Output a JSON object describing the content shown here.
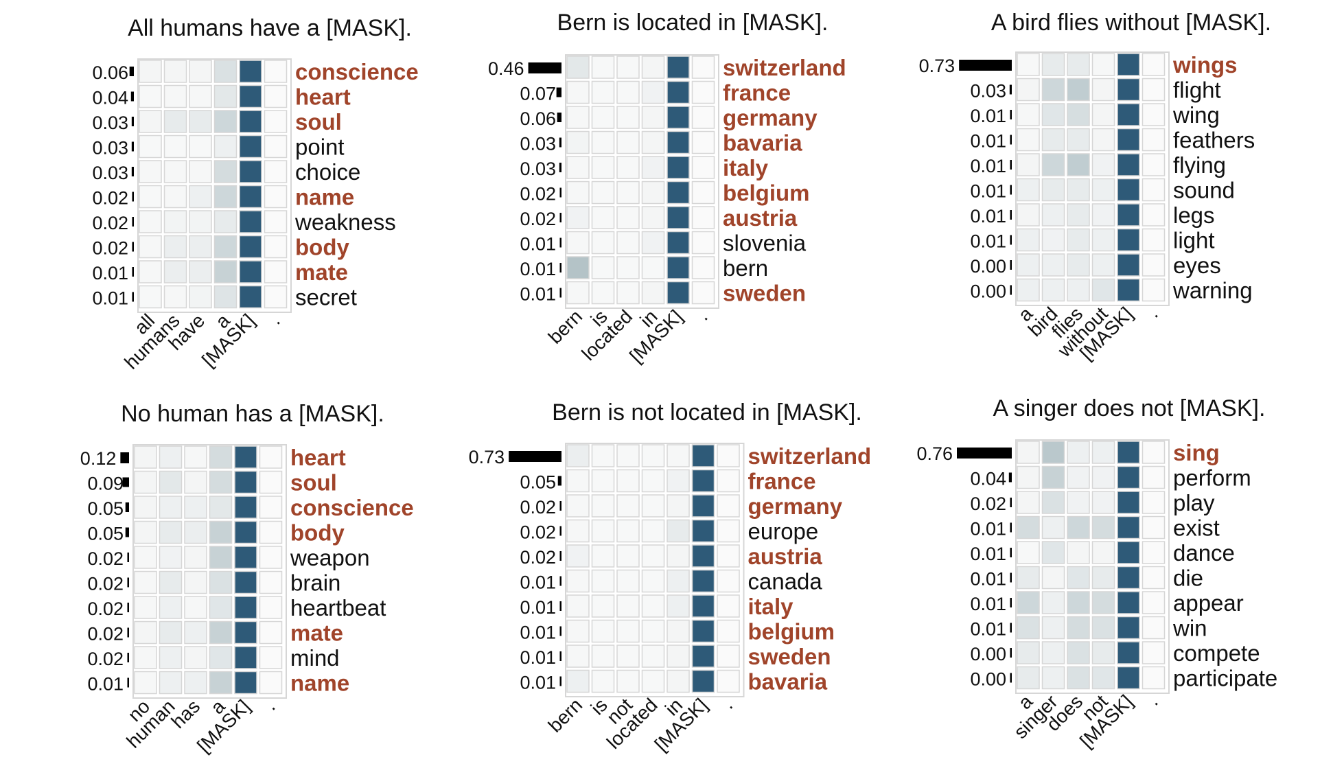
{
  "chart_data": [
    {
      "type": "heatmap",
      "title": "All humans have a [MASK].",
      "tokens": [
        "all",
        "humans",
        "have",
        "a",
        "[MASK]",
        "."
      ],
      "predictions": [
        {
          "word": "conscience",
          "prob": "0.06",
          "value": 0.06,
          "highlight": true,
          "attn": [
            0.05,
            0.05,
            0.05,
            0.25,
            1.0,
            0.0
          ]
        },
        {
          "word": "heart",
          "prob": "0.04",
          "value": 0.04,
          "highlight": true,
          "attn": [
            0.02,
            0.03,
            0.03,
            0.18,
            1.0,
            0.0
          ]
        },
        {
          "word": "soul",
          "prob": "0.03",
          "value": 0.03,
          "highlight": true,
          "attn": [
            0.05,
            0.15,
            0.15,
            0.35,
            1.0,
            0.0
          ]
        },
        {
          "word": "point",
          "prob": "0.03",
          "value": 0.03,
          "highlight": false,
          "attn": [
            0.02,
            0.02,
            0.02,
            0.1,
            1.0,
            0.0
          ]
        },
        {
          "word": "choice",
          "prob": "0.03",
          "value": 0.03,
          "highlight": false,
          "attn": [
            0.03,
            0.03,
            0.03,
            0.3,
            1.0,
            0.0
          ]
        },
        {
          "word": "name",
          "prob": "0.02",
          "value": 0.02,
          "highlight": true,
          "attn": [
            0.02,
            0.03,
            0.1,
            0.35,
            1.0,
            0.0
          ]
        },
        {
          "word": "weakness",
          "prob": "0.02",
          "value": 0.02,
          "highlight": false,
          "attn": [
            0.03,
            0.06,
            0.06,
            0.15,
            1.0,
            0.0
          ]
        },
        {
          "word": "body",
          "prob": "0.02",
          "value": 0.02,
          "highlight": true,
          "attn": [
            0.03,
            0.12,
            0.12,
            0.35,
            1.0,
            0.0
          ]
        },
        {
          "word": "mate",
          "prob": "0.01",
          "value": 0.01,
          "highlight": true,
          "attn": [
            0.03,
            0.12,
            0.12,
            0.4,
            1.0,
            0.0
          ]
        },
        {
          "word": "secret",
          "prob": "0.01",
          "value": 0.01,
          "highlight": false,
          "attn": [
            0.02,
            0.03,
            0.06,
            0.22,
            1.0,
            0.0
          ]
        }
      ]
    },
    {
      "type": "heatmap",
      "title": "Bern is located in [MASK].",
      "tokens": [
        "bern",
        "is",
        "located",
        "in",
        "[MASK]",
        "."
      ],
      "predictions": [
        {
          "word": "switzerland",
          "prob": "0.46",
          "value": 0.46,
          "highlight": true,
          "attn": [
            0.18,
            0.02,
            0.02,
            0.05,
            1.0,
            0.0
          ]
        },
        {
          "word": "france",
          "prob": "0.07",
          "value": 0.07,
          "highlight": true,
          "attn": [
            0.03,
            0.02,
            0.02,
            0.08,
            1.0,
            0.0
          ]
        },
        {
          "word": "germany",
          "prob": "0.06",
          "value": 0.06,
          "highlight": true,
          "attn": [
            0.03,
            0.02,
            0.02,
            0.05,
            1.0,
            0.0
          ]
        },
        {
          "word": "bavaria",
          "prob": "0.03",
          "value": 0.03,
          "highlight": true,
          "attn": [
            0.06,
            0.02,
            0.02,
            0.05,
            1.0,
            0.0
          ]
        },
        {
          "word": "italy",
          "prob": "0.03",
          "value": 0.03,
          "highlight": true,
          "attn": [
            0.03,
            0.02,
            0.02,
            0.08,
            1.0,
            0.0
          ]
        },
        {
          "word": "belgium",
          "prob": "0.02",
          "value": 0.02,
          "highlight": true,
          "attn": [
            0.03,
            0.02,
            0.02,
            0.05,
            1.0,
            0.0
          ]
        },
        {
          "word": "austria",
          "prob": "0.02",
          "value": 0.02,
          "highlight": true,
          "attn": [
            0.08,
            0.02,
            0.02,
            0.05,
            1.0,
            0.0
          ]
        },
        {
          "word": "slovenia",
          "prob": "0.01",
          "value": 0.01,
          "highlight": false,
          "attn": [
            0.03,
            0.02,
            0.02,
            0.08,
            1.0,
            0.0
          ]
        },
        {
          "word": "bern",
          "prob": "0.01",
          "value": 0.01,
          "highlight": false,
          "attn": [
            0.55,
            0.02,
            0.02,
            0.02,
            1.0,
            0.0
          ]
        },
        {
          "word": "sweden",
          "prob": "0.01",
          "value": 0.01,
          "highlight": true,
          "attn": [
            0.03,
            0.02,
            0.02,
            0.05,
            1.0,
            0.0
          ]
        }
      ]
    },
    {
      "type": "heatmap",
      "title": "A bird flies without [MASK].",
      "tokens": [
        "a",
        "bird",
        "flies",
        "without",
        "[MASK]",
        "."
      ],
      "predictions": [
        {
          "word": "wings",
          "prob": "0.73",
          "value": 0.73,
          "highlight": true,
          "attn": [
            0.02,
            0.15,
            0.15,
            0.03,
            1.0,
            0.0
          ]
        },
        {
          "word": "flight",
          "prob": "0.03",
          "value": 0.03,
          "highlight": false,
          "attn": [
            0.05,
            0.35,
            0.45,
            0.05,
            1.0,
            0.0
          ]
        },
        {
          "word": "wing",
          "prob": "0.01",
          "value": 0.01,
          "highlight": false,
          "attn": [
            0.03,
            0.2,
            0.28,
            0.05,
            1.0,
            0.0
          ]
        },
        {
          "word": "feathers",
          "prob": "0.01",
          "value": 0.01,
          "highlight": false,
          "attn": [
            0.03,
            0.15,
            0.15,
            0.05,
            1.0,
            0.0
          ]
        },
        {
          "word": "flying",
          "prob": "0.01",
          "value": 0.01,
          "highlight": false,
          "attn": [
            0.05,
            0.35,
            0.45,
            0.08,
            1.0,
            0.0
          ]
        },
        {
          "word": "sound",
          "prob": "0.01",
          "value": 0.01,
          "highlight": false,
          "attn": [
            0.1,
            0.15,
            0.15,
            0.1,
            1.0,
            0.0
          ]
        },
        {
          "word": "legs",
          "prob": "0.01",
          "value": 0.01,
          "highlight": false,
          "attn": [
            0.05,
            0.1,
            0.15,
            0.08,
            1.0,
            0.0
          ]
        },
        {
          "word": "light",
          "prob": "0.01",
          "value": 0.01,
          "highlight": false,
          "attn": [
            0.1,
            0.08,
            0.15,
            0.1,
            1.0,
            0.0
          ]
        },
        {
          "word": "eyes",
          "prob": "0.00",
          "value": 0.0,
          "highlight": false,
          "attn": [
            0.1,
            0.1,
            0.15,
            0.1,
            1.0,
            0.0
          ]
        },
        {
          "word": "warning",
          "prob": "0.00",
          "value": 0.0,
          "highlight": false,
          "attn": [
            0.1,
            0.1,
            0.1,
            0.2,
            1.0,
            0.0
          ]
        }
      ]
    },
    {
      "type": "heatmap",
      "title": "No human has a [MASK].",
      "tokens": [
        "no",
        "human",
        "has",
        "a",
        "[MASK]",
        "."
      ],
      "predictions": [
        {
          "word": "heart",
          "prob": "0.12",
          "value": 0.12,
          "highlight": true,
          "attn": [
            0.05,
            0.1,
            0.03,
            0.3,
            1.0,
            0.0
          ]
        },
        {
          "word": "soul",
          "prob": "0.09",
          "value": 0.09,
          "highlight": true,
          "attn": [
            0.05,
            0.18,
            0.05,
            0.3,
            1.0,
            0.0
          ]
        },
        {
          "word": "conscience",
          "prob": "0.05",
          "value": 0.05,
          "highlight": true,
          "attn": [
            0.05,
            0.1,
            0.1,
            0.18,
            1.0,
            0.0
          ]
        },
        {
          "word": "body",
          "prob": "0.05",
          "value": 0.05,
          "highlight": true,
          "attn": [
            0.05,
            0.15,
            0.12,
            0.4,
            1.0,
            0.0
          ]
        },
        {
          "word": "weapon",
          "prob": "0.02",
          "value": 0.02,
          "highlight": false,
          "attn": [
            0.03,
            0.08,
            0.05,
            0.4,
            1.0,
            0.0
          ]
        },
        {
          "word": "brain",
          "prob": "0.02",
          "value": 0.02,
          "highlight": false,
          "attn": [
            0.03,
            0.15,
            0.05,
            0.25,
            1.0,
            0.0
          ]
        },
        {
          "word": "heartbeat",
          "prob": "0.02",
          "value": 0.02,
          "highlight": false,
          "attn": [
            0.03,
            0.1,
            0.03,
            0.2,
            1.0,
            0.0
          ]
        },
        {
          "word": "mate",
          "prob": "0.02",
          "value": 0.02,
          "highlight": true,
          "attn": [
            0.05,
            0.15,
            0.1,
            0.4,
            1.0,
            0.0
          ]
        },
        {
          "word": "mind",
          "prob": "0.02",
          "value": 0.02,
          "highlight": false,
          "attn": [
            0.03,
            0.1,
            0.05,
            0.2,
            1.0,
            0.0
          ]
        },
        {
          "word": "name",
          "prob": "0.01",
          "value": 0.01,
          "highlight": true,
          "attn": [
            0.03,
            0.1,
            0.1,
            0.4,
            1.0,
            0.0
          ]
        }
      ]
    },
    {
      "type": "heatmap",
      "title": "Bern is not located in [MASK].",
      "tokens": [
        "bern",
        "is",
        "not",
        "located",
        "in",
        "[MASK]",
        "."
      ],
      "predictions": [
        {
          "word": "switzerland",
          "prob": "0.73",
          "value": 0.73,
          "highlight": true,
          "attn": [
            0.12,
            0.02,
            0.02,
            0.02,
            0.03,
            1.0,
            0.0
          ]
        },
        {
          "word": "france",
          "prob": "0.05",
          "value": 0.05,
          "highlight": true,
          "attn": [
            0.03,
            0.02,
            0.02,
            0.02,
            0.08,
            1.0,
            0.0
          ]
        },
        {
          "word": "germany",
          "prob": "0.02",
          "value": 0.02,
          "highlight": true,
          "attn": [
            0.03,
            0.02,
            0.02,
            0.02,
            0.05,
            1.0,
            0.0
          ]
        },
        {
          "word": "europe",
          "prob": "0.02",
          "value": 0.02,
          "highlight": false,
          "attn": [
            0.03,
            0.02,
            0.02,
            0.02,
            0.15,
            1.0,
            0.0
          ]
        },
        {
          "word": "austria",
          "prob": "0.02",
          "value": 0.02,
          "highlight": true,
          "attn": [
            0.08,
            0.02,
            0.02,
            0.02,
            0.05,
            1.0,
            0.0
          ]
        },
        {
          "word": "canada",
          "prob": "0.01",
          "value": 0.01,
          "highlight": false,
          "attn": [
            0.03,
            0.02,
            0.02,
            0.02,
            0.1,
            1.0,
            0.0
          ]
        },
        {
          "word": "italy",
          "prob": "0.01",
          "value": 0.01,
          "highlight": true,
          "attn": [
            0.03,
            0.02,
            0.02,
            0.02,
            0.1,
            1.0,
            0.0
          ]
        },
        {
          "word": "belgium",
          "prob": "0.01",
          "value": 0.01,
          "highlight": true,
          "attn": [
            0.03,
            0.02,
            0.02,
            0.02,
            0.05,
            1.0,
            0.0
          ]
        },
        {
          "word": "sweden",
          "prob": "0.01",
          "value": 0.01,
          "highlight": true,
          "attn": [
            0.03,
            0.02,
            0.02,
            0.02,
            0.05,
            1.0,
            0.0
          ]
        },
        {
          "word": "bavaria",
          "prob": "0.01",
          "value": 0.01,
          "highlight": true,
          "attn": [
            0.1,
            0.02,
            0.02,
            0.02,
            0.05,
            1.0,
            0.0
          ]
        }
      ]
    },
    {
      "type": "heatmap",
      "title": "A singer does not [MASK].",
      "tokens": [
        "a",
        "singer",
        "does",
        "not",
        "[MASK]",
        "."
      ],
      "predictions": [
        {
          "word": "sing",
          "prob": "0.76",
          "value": 0.76,
          "highlight": true,
          "attn": [
            0.05,
            0.5,
            0.1,
            0.1,
            1.0,
            0.0
          ]
        },
        {
          "word": "perform",
          "prob": "0.04",
          "value": 0.04,
          "highlight": false,
          "attn": [
            0.05,
            0.4,
            0.08,
            0.08,
            1.0,
            0.0
          ]
        },
        {
          "word": "play",
          "prob": "0.02",
          "value": 0.02,
          "highlight": false,
          "attn": [
            0.05,
            0.25,
            0.08,
            0.08,
            1.0,
            0.0
          ]
        },
        {
          "word": "exist",
          "prob": "0.01",
          "value": 0.01,
          "highlight": false,
          "attn": [
            0.3,
            0.1,
            0.35,
            0.3,
            1.0,
            0.0
          ]
        },
        {
          "word": "dance",
          "prob": "0.01",
          "value": 0.01,
          "highlight": false,
          "attn": [
            0.02,
            0.2,
            0.05,
            0.05,
            1.0,
            0.0
          ]
        },
        {
          "word": "die",
          "prob": "0.01",
          "value": 0.01,
          "highlight": false,
          "attn": [
            0.15,
            0.05,
            0.2,
            0.15,
            1.0,
            0.0
          ]
        },
        {
          "word": "appear",
          "prob": "0.01",
          "value": 0.01,
          "highlight": false,
          "attn": [
            0.35,
            0.1,
            0.35,
            0.3,
            1.0,
            0.0
          ]
        },
        {
          "word": "win",
          "prob": "0.01",
          "value": 0.01,
          "highlight": false,
          "attn": [
            0.25,
            0.1,
            0.3,
            0.25,
            1.0,
            0.0
          ]
        },
        {
          "word": "compete",
          "prob": "0.00",
          "value": 0.0,
          "highlight": false,
          "attn": [
            0.15,
            0.1,
            0.25,
            0.15,
            1.0,
            0.0
          ]
        },
        {
          "word": "participate",
          "prob": "0.00",
          "value": 0.0,
          "highlight": false,
          "attn": [
            0.15,
            0.1,
            0.25,
            0.2,
            1.0,
            0.0
          ]
        }
      ]
    }
  ],
  "colors": {
    "highlight_text": "#a0442a",
    "normal_text": "#111111",
    "mask_cell": "#2e5a78",
    "cell_border": "#d6d6d6",
    "bar": "#000000"
  }
}
